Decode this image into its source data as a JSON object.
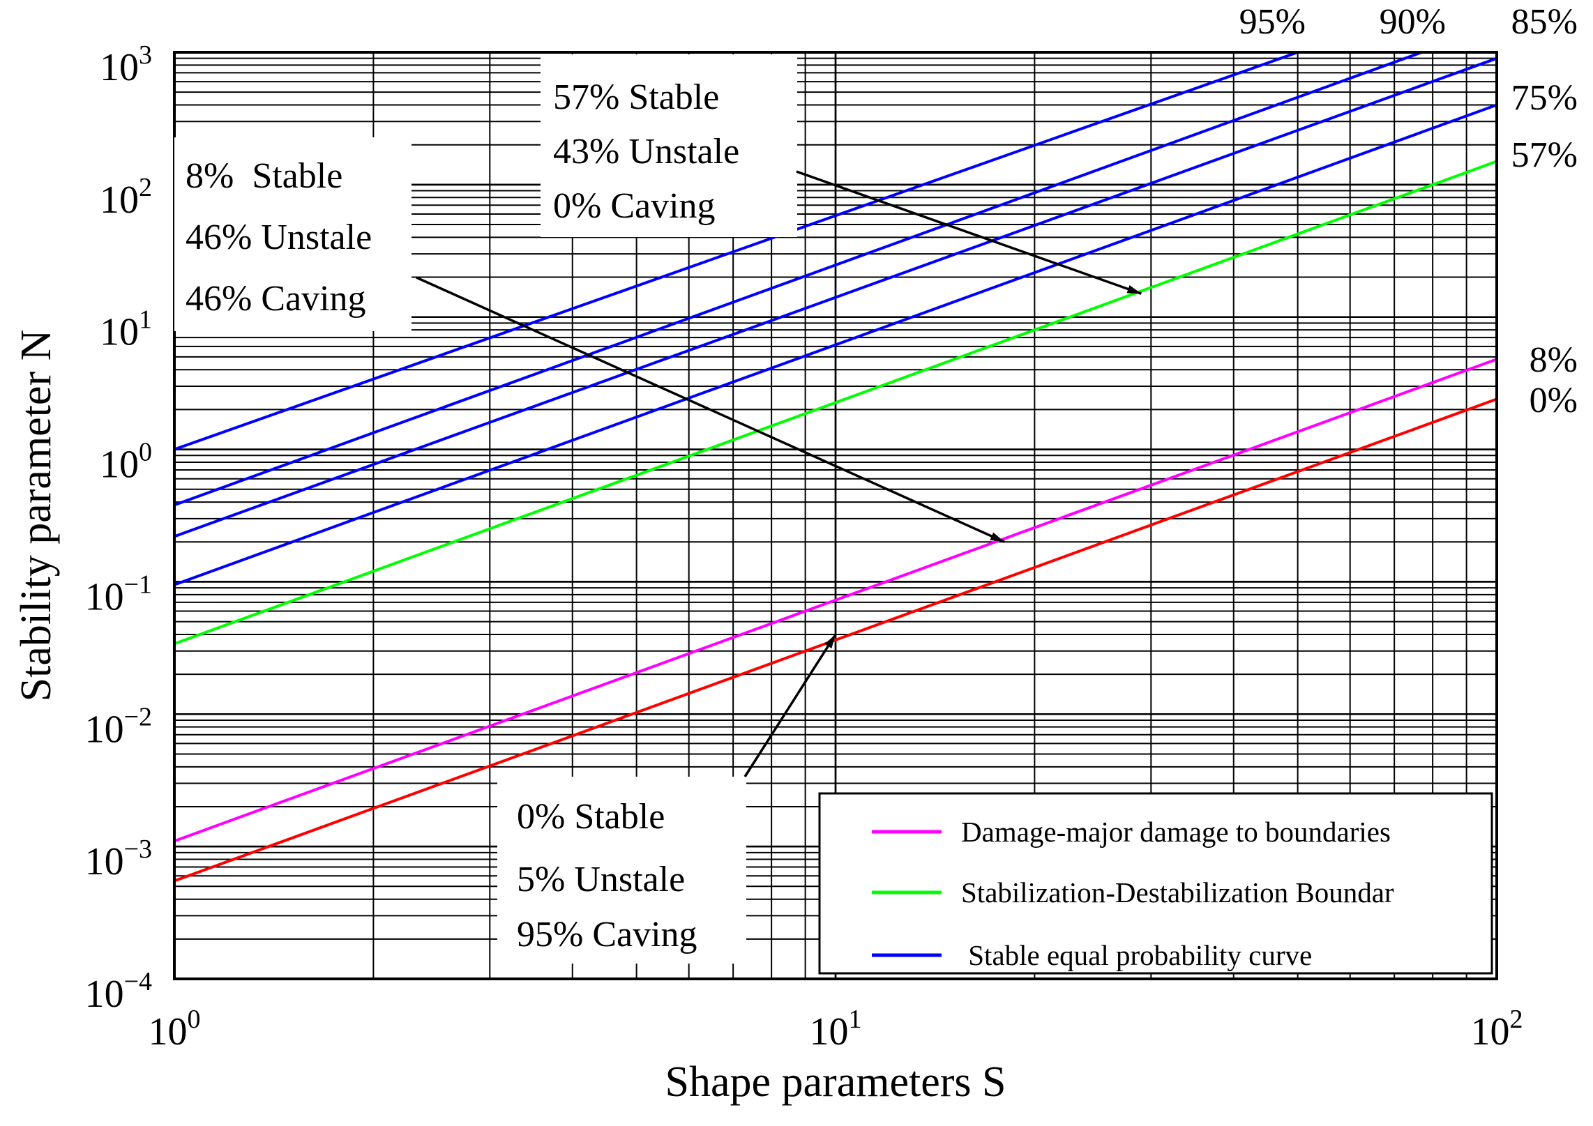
{
  "chart_data": {
    "type": "line",
    "title": "",
    "xlabel": "Shape parameters S",
    "ylabel": "Stability parameter N",
    "x_scale": "log",
    "y_scale": "log",
    "xlim": [
      1,
      100
    ],
    "ylim": [
      0.0001,
      1000
    ],
    "grid": true,
    "x_ticks": [
      {
        "base": "10",
        "exp": "0"
      },
      {
        "base": "10",
        "exp": "1"
      },
      {
        "base": "10",
        "exp": "2"
      }
    ],
    "y_ticks": [
      {
        "base": "10",
        "exp": "−4"
      },
      {
        "base": "10",
        "exp": "−3"
      },
      {
        "base": "10",
        "exp": "−2"
      },
      {
        "base": "10",
        "exp": "−1"
      },
      {
        "base": "10",
        "exp": "0"
      },
      {
        "base": "10",
        "exp": "1"
      },
      {
        "base": "10",
        "exp": "2"
      },
      {
        "base": "10",
        "exp": "3"
      }
    ],
    "legend_position": "bottom-right",
    "legend": [
      {
        "label": "Damage-major damage to boundaries",
        "color": "#ff00ff"
      },
      {
        "label": "Stabilization-Destabilization Boundar",
        "color": "#00ff00"
      },
      {
        "label": " Stable equal probability curve",
        "color": "#0000ff"
      }
    ],
    "series": [
      {
        "label": "95%",
        "color": "#0000ff",
        "x": [
          1,
          50
        ],
        "y": [
          1.0,
          1000
        ]
      },
      {
        "label": "90%",
        "color": "#0000ff",
        "x": [
          1,
          77
        ],
        "y": [
          0.38,
          1000
        ]
      },
      {
        "label": "85%",
        "color": "#0000ff",
        "x": [
          1,
          100
        ],
        "y": [
          0.22,
          900
        ]
      },
      {
        "label": "75%",
        "color": "#0000ff",
        "x": [
          1,
          100
        ],
        "y": [
          0.095,
          400
        ]
      },
      {
        "label": "57%",
        "color": "#00ff00",
        "x": [
          1,
          100
        ],
        "y": [
          0.034,
          150
        ]
      },
      {
        "label": "8%",
        "color": "#ff00ff",
        "x": [
          1,
          100
        ],
        "y": [
          0.0011,
          4.8
        ]
      },
      {
        "label": "0%",
        "color": "#ff0000",
        "x": [
          1,
          100
        ],
        "y": [
          0.00055,
          2.4
        ]
      }
    ],
    "annotations": [
      {
        "lines": [
          "57% Stable",
          "43% Unstale",
          "0% Caving"
        ],
        "arrow_to": {
          "x": 29,
          "y": 15
        }
      },
      {
        "lines": [
          "8%  Stable",
          "46% Unstale",
          "46% Caving"
        ],
        "arrow_to": {
          "x": 18,
          "y": 0.2
        }
      },
      {
        "lines": [
          "0% Stable",
          "5% Unstale",
          "95% Caving"
        ],
        "arrow_to": {
          "x": 10,
          "y": 0.04
        }
      }
    ]
  }
}
